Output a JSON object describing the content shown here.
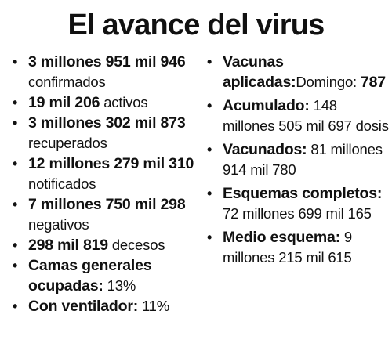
{
  "title": "El avance del virus",
  "left_items": [
    {
      "bold": "3 millones 951 mil 946",
      "rest": " confirmados"
    },
    {
      "bold": "19 mil 206",
      "rest": " activos"
    },
    {
      "bold": "3 millones 302 mil 873",
      "rest": " recuperados"
    },
    {
      "bold": "12 millones 279 mil 310",
      "rest": " notificados"
    },
    {
      "bold": "7 millones 750 mil 298",
      "rest": " negativos"
    },
    {
      "bold": "298 mil 819",
      "rest": " decesos"
    },
    {
      "bold": "Camas generales ocupadas:",
      "rest": " 13%"
    },
    {
      "bold": "Con ventilador:",
      "rest": " 11%"
    }
  ],
  "right_items": [
    {
      "bold": "Vacunas aplicadas:",
      "rest": "Domingo: ",
      "bold2": "787"
    },
    {
      "bold": "Acumulado:",
      "rest": " 148 millones 505 mil 697 dosis"
    },
    {
      "bold": "Vacunados:",
      "rest": " 81 millones 914 mil 780"
    },
    {
      "bold": "Esquemas completos:",
      "rest": " 72 millones 699 mil 165"
    },
    {
      "bold": "Medio esquema:",
      "rest": " 9 millones 215 mil 615"
    }
  ],
  "bullet_char": "•"
}
